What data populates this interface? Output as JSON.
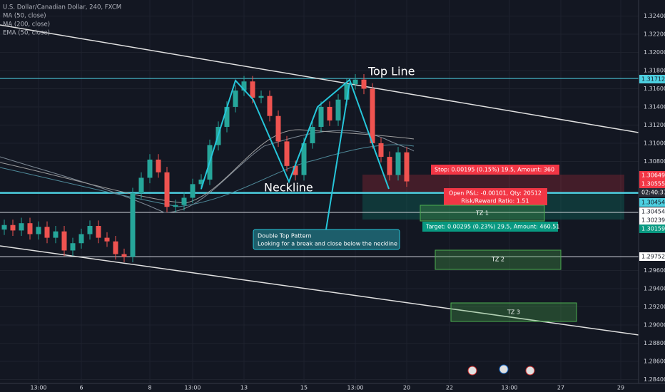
{
  "header": {
    "symbol": "U.S. Dollar/Canadian Dollar, 240, FXCM",
    "indicators": [
      "MA (50, close)",
      "MA (200, close)",
      "EMA (50, close)"
    ]
  },
  "chart_data": {
    "type": "candlestick",
    "categories": [
      null,
      null,
      null,
      null,
      "13:00",
      null,
      null,
      null,
      null,
      "6",
      null,
      null,
      null,
      null,
      null,
      null,
      null,
      "8",
      null,
      null,
      null,
      null,
      "13:00",
      null,
      null,
      null,
      null,
      null,
      "13",
      null,
      null,
      null,
      null,
      null,
      null,
      "15",
      null,
      null,
      null,
      null,
      null,
      "13:00",
      null,
      null,
      null,
      null,
      null,
      "20",
      null,
      null,
      null,
      null,
      "22",
      null,
      null,
      null,
      null,
      null,
      null,
      "13:00",
      null,
      null,
      null,
      null,
      null,
      "27",
      null,
      null,
      null,
      null,
      null,
      null,
      "29",
      null,
      null
    ],
    "open": [
      1.3005,
      1.301,
      1.3004,
      1.3012,
      1.3,
      1.3008,
      1.2996,
      1.3003,
      1.2982,
      1.299,
      1.3,
      1.3009,
      1.2996,
      1.2992,
      1.2978,
      1.2975,
      1.3045,
      1.3062,
      1.3082,
      1.3068,
      1.303,
      1.3032,
      1.304,
      1.3055,
      1.306,
      1.3098,
      1.3118,
      1.314,
      1.3158,
      1.3168,
      1.315,
      1.3152,
      1.313,
      1.3102,
      1.3075,
      1.3065,
      1.31,
      1.3118,
      1.314,
      1.3125,
      1.3148,
      1.3165,
      1.317,
      1.316,
      1.31,
      1.3085,
      1.3065,
      1.309,
      null,
      null,
      null,
      null,
      null,
      null,
      null,
      null,
      null,
      null,
      null,
      null,
      null,
      null,
      null,
      null,
      null,
      null,
      null,
      null,
      null,
      null,
      null,
      null,
      null,
      null,
      null
    ],
    "high": [
      1.3016,
      1.3016,
      1.3018,
      1.3018,
      1.3014,
      1.3014,
      1.3009,
      1.3009,
      1.2996,
      1.3006,
      1.3015,
      1.3015,
      1.3002,
      1.2998,
      1.2984,
      1.3051,
      1.3068,
      1.3088,
      1.3088,
      1.3074,
      1.3038,
      1.3046,
      1.3061,
      1.3066,
      1.3104,
      1.3124,
      1.3146,
      1.3164,
      1.3174,
      1.3174,
      1.3158,
      1.3158,
      1.3136,
      1.3108,
      1.3081,
      1.3106,
      1.3124,
      1.3146,
      1.3146,
      1.3154,
      1.3171,
      1.3176,
      1.3176,
      1.3166,
      1.3106,
      1.3091,
      1.3096,
      1.3096,
      null,
      null,
      null,
      null,
      null,
      null,
      null,
      null,
      null,
      null,
      null,
      null,
      null,
      null,
      null,
      null,
      null,
      null,
      null,
      null,
      null,
      null,
      null,
      null,
      null,
      null,
      null
    ],
    "low": [
      1.2999,
      1.2998,
      1.2998,
      1.2994,
      1.2994,
      1.299,
      1.299,
      1.2976,
      1.2976,
      1.2984,
      1.2994,
      1.299,
      1.2986,
      1.2972,
      1.2969,
      1.2969,
      1.3039,
      1.3056,
      1.3062,
      1.3024,
      1.3024,
      1.3026,
      1.3034,
      1.3049,
      1.3054,
      1.3092,
      1.3112,
      1.3134,
      1.3152,
      1.3144,
      1.3144,
      1.3124,
      1.3096,
      1.3069,
      1.3059,
      1.3059,
      1.3094,
      1.3112,
      1.3119,
      1.3119,
      1.3142,
      1.3159,
      1.3154,
      1.3094,
      1.3079,
      1.3059,
      1.3059,
      1.3052,
      null,
      null,
      null,
      null,
      null,
      null,
      null,
      null,
      null,
      null,
      null,
      null,
      null,
      null,
      null,
      null,
      null,
      null,
      null,
      null,
      null,
      null,
      null,
      null,
      null,
      null,
      null
    ],
    "close": [
      1.301,
      1.3004,
      1.3012,
      1.3,
      1.3008,
      1.2996,
      1.3003,
      1.2982,
      1.299,
      1.3,
      1.3009,
      1.2996,
      1.2992,
      1.2978,
      1.2975,
      1.3045,
      1.3062,
      1.3082,
      1.3068,
      1.303,
      1.3032,
      1.304,
      1.3055,
      1.306,
      1.3098,
      1.3118,
      1.314,
      1.3158,
      1.3168,
      1.315,
      1.3152,
      1.313,
      1.3102,
      1.3075,
      1.3065,
      1.31,
      1.3118,
      1.314,
      1.3125,
      1.3148,
      1.3165,
      1.317,
      1.316,
      1.31,
      1.3085,
      1.3065,
      1.309,
      1.3058,
      null,
      null,
      null,
      null,
      null,
      null,
      null,
      null,
      null,
      null,
      null,
      null,
      null,
      null,
      null,
      null,
      null,
      null,
      null,
      null,
      null,
      null,
      null,
      null,
      null,
      null,
      null
    ],
    "up_color": "#26a69a",
    "down_color": "#ef5350",
    "ylim": [
      1.28357,
      1.32576
    ],
    "yticks": [
      {
        "value": 1.324,
        "label": "1.32400"
      },
      {
        "value": 1.322,
        "label": "1.32200"
      },
      {
        "value": 1.32,
        "label": "1.32000"
      },
      {
        "value": 1.318,
        "label": "1.31800"
      },
      {
        "value": 1.316,
        "label": "1.31600"
      },
      {
        "value": 1.314,
        "label": "1.31400"
      },
      {
        "value": 1.312,
        "label": "1.31200"
      },
      {
        "value": 1.31,
        "label": "1.31000"
      },
      {
        "value": 1.308,
        "label": "1.30800"
      },
      {
        "value": 1.296,
        "label": "1.29600"
      },
      {
        "value": 1.294,
        "label": "1.29400"
      },
      {
        "value": 1.292,
        "label": "1.29200"
      },
      {
        "value": 1.29,
        "label": "1.29000"
      },
      {
        "value": 1.288,
        "label": "1.28800"
      },
      {
        "value": 1.286,
        "label": "1.28600"
      },
      {
        "value": 1.284,
        "label": "1.28400"
      }
    ],
    "levels": [
      {
        "value": 1.31712,
        "color": "#4dd0e1"
      },
      {
        "value": 1.30454,
        "color": "#4dd0e1"
      },
      {
        "value": 1.30239,
        "color": "#d1d4dc"
      },
      {
        "value": 1.29752,
        "color": "#d1d4dc"
      }
    ],
    "grid": true
  },
  "annotations": {
    "top_line": "Top Line",
    "neckline": "Neckline",
    "callout": [
      "Double Top Pattern",
      "Looking for a break and close below the neckline"
    ],
    "stop": "Stop: 0.00195 (0.15%) 19.5, Amount: 360",
    "open_pnl": "Open P&L: -0.00101, Qty: 20512",
    "risk_reward": "Risk/Reward Ratio: 1.51",
    "target": "Target: 0.00295 (0.23%) 29.5, Amount: 460.51",
    "zones": [
      "TZ 1",
      "TZ 2",
      "TZ 3"
    ]
  },
  "price_tags": [
    {
      "label": "1.31712",
      "color": "#4dd0e1"
    },
    {
      "label": "1.30649",
      "color": "#f23645"
    },
    {
      "label": "1.30555",
      "color": "#f23645"
    },
    {
      "label": "02:40:37",
      "color": "#2a2e39"
    },
    {
      "label": "1.30454",
      "color": "#4dd0e1"
    },
    {
      "label": "1.30454",
      "color": "#ffffff"
    },
    {
      "label": "1.30239",
      "color": "#ffffff"
    },
    {
      "label": "1.30159",
      "color": "#089981"
    },
    {
      "label": "1.29752",
      "color": "#ffffff"
    }
  ]
}
